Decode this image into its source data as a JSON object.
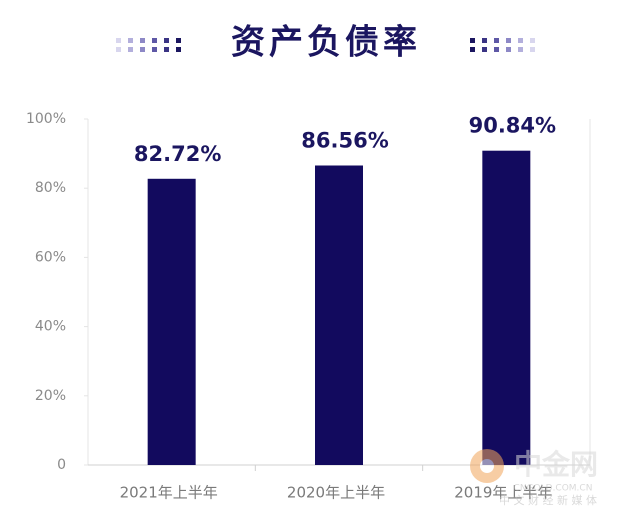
{
  "chart_data": {
    "type": "bar",
    "title": "资产负债率",
    "categories": [
      "2021年上半年",
      "2020年上半年",
      "2019年上半年"
    ],
    "values": [
      82.72,
      86.56,
      90.84
    ],
    "value_labels": [
      "82.72%",
      "86.56%",
      "90.84%"
    ],
    "color": "#120a5e",
    "ylim": [
      0,
      100
    ],
    "yticks": [
      0,
      {
        "value": 20,
        "label": "20%"
      },
      {
        "value": 40,
        "label": "40%"
      },
      {
        "value": 60,
        "label": "60%"
      },
      {
        "value": 80,
        "label": "80%"
      },
      {
        "value": 100,
        "label": "100%"
      }
    ],
    "grid": false
  },
  "watermark": {
    "name": "中金网",
    "url": "CNGOLD.COM.CN",
    "tagline": "中 文 财 经 新 媒 体"
  }
}
